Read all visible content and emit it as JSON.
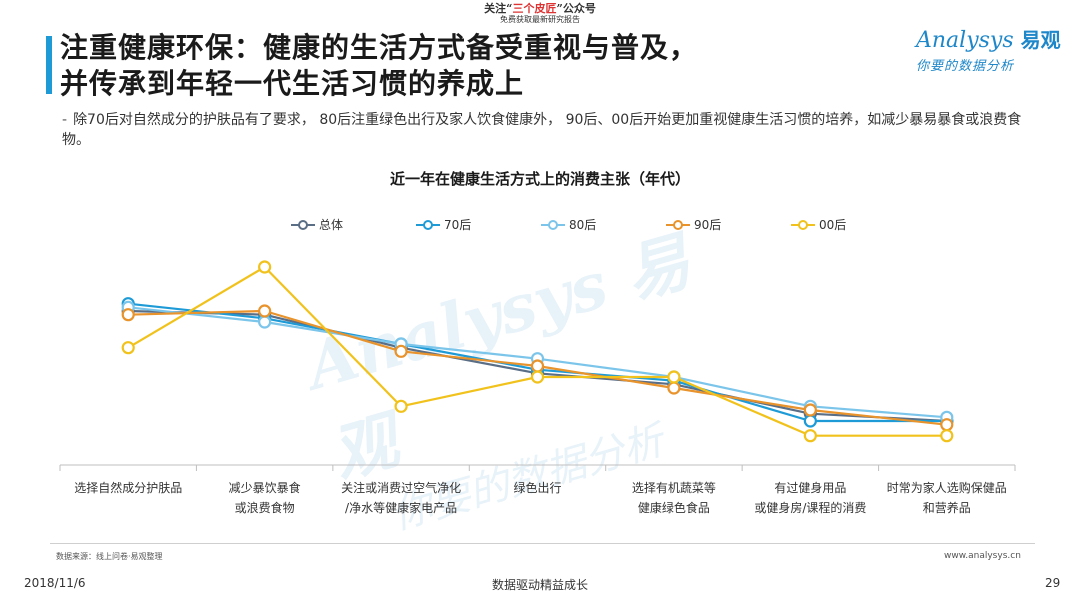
{
  "top_note": {
    "line1_pre": "关注“",
    "line1_highlight": "三个皮匠",
    "line1_post": "”公众号",
    "line2": "免费获取最新研究报告"
  },
  "title": {
    "line1": "注重健康环保：健康的生活方式备受重视与普及，",
    "line2": "并传承到年轻一代生活习惯的养成上"
  },
  "logo": {
    "brand": "nalysys",
    "brand_initial": "A",
    "brand_cn": "易观",
    "slogan": "你要的数据分析"
  },
  "bullet": {
    "dash": "-",
    "text": "除70后对自然成分的护肤品有了要求， 80后注重绿色出行及家人饮食健康外， 90后、00后开始更加重视健康生活习惯的培养，如减少暴易暴食或浪费食物。"
  },
  "watermark": {
    "line1": "Analysys 易观",
    "line2": "你要的数据分析"
  },
  "chart_data": {
    "type": "line",
    "title": "近一年在健康生活方式上的消费主张（年代）",
    "xlabel": "",
    "ylabel": "",
    "categories": [
      [
        "选择自然成分护肤品"
      ],
      [
        "减少暴饮暴食",
        "或浪费食物"
      ],
      [
        "关注或消费过空气净化",
        "/净水等健康家电产品"
      ],
      [
        "绿色出行"
      ],
      [
        "选择有机蔬菜等",
        "健康绿色食品"
      ],
      [
        "有过健身用品",
        "或健身房/课程的消费"
      ],
      [
        "时常为家人选购保健品",
        "和营养品"
      ]
    ],
    "ylim": [
      0,
      60
    ],
    "y_axis_visible": false,
    "grid": false,
    "legend_position": "top",
    "series": [
      {
        "name": "总体",
        "color": "#5a6e86",
        "values": [
          42,
          41,
          32,
          25,
          22,
          14,
          12
        ]
      },
      {
        "name": "70后",
        "color": "#1e9bd7",
        "values": [
          44,
          40,
          33,
          26,
          23,
          12,
          12
        ]
      },
      {
        "name": "80后",
        "color": "#7cc5ea",
        "values": [
          43,
          39,
          33,
          29,
          24,
          16,
          13
        ]
      },
      {
        "name": "90后",
        "color": "#e8932b",
        "values": [
          41,
          42,
          31,
          27,
          21,
          15,
          11
        ]
      },
      {
        "name": "00后",
        "color": "#f1c21b",
        "values": [
          32,
          54,
          16,
          24,
          24,
          8,
          8
        ]
      }
    ]
  },
  "footer": {
    "source": "数据来源：线上问卷·易观整理",
    "site": "www.analysys.cn",
    "date": "2018/11/6",
    "center": "数据驱动精益成长",
    "page": "29"
  }
}
